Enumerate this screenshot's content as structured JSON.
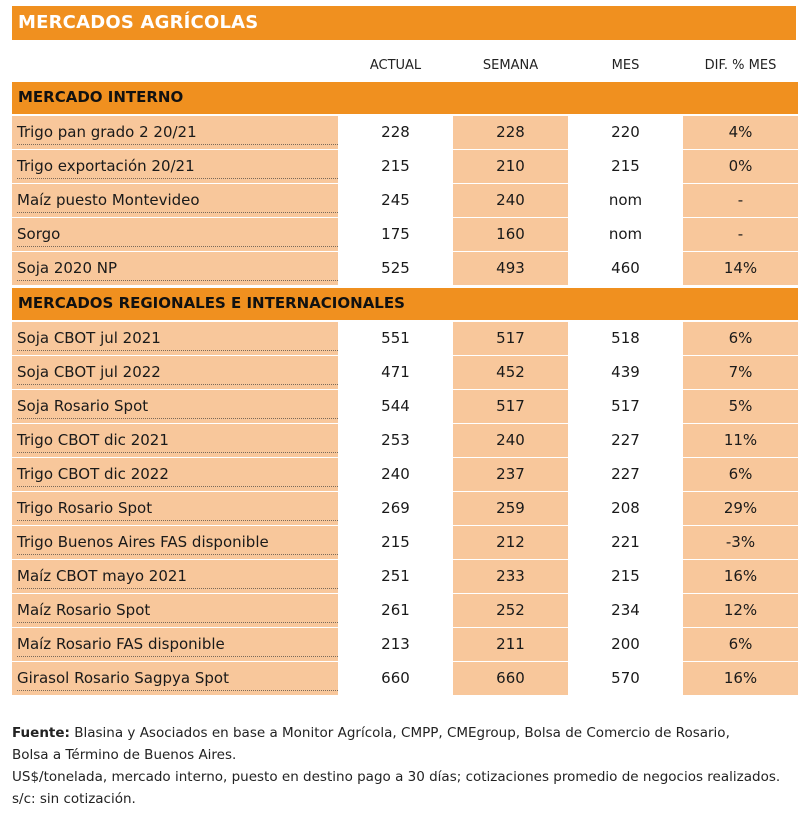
{
  "title": "MERCADOS AGRÍCOLAS",
  "columns": [
    "ACTUAL",
    "SEMANA",
    "MES",
    "DIF. % MES"
  ],
  "sections": [
    {
      "label": "MERCADO INTERNO",
      "rows": [
        {
          "name": "Trigo pan grado 2 20/21",
          "actual": "228",
          "semana": "228",
          "mes": "220",
          "dif": "4%"
        },
        {
          "name": "Trigo exportación 20/21",
          "actual": "215",
          "semana": "210",
          "mes": "215",
          "dif": "0%"
        },
        {
          "name": "Maíz puesto Montevideo",
          "actual": "245",
          "semana": "240",
          "mes": "nom",
          "dif": "-"
        },
        {
          "name": "Sorgo",
          "actual": "175",
          "semana": "160",
          "mes": "nom",
          "dif": "-"
        },
        {
          "name": "Soja 2020 NP",
          "actual": "525",
          "semana": "493",
          "mes": "460",
          "dif": "14%"
        }
      ]
    },
    {
      "label": "MERCADOS REGIONALES E INTERNACIONALES",
      "rows": [
        {
          "name": "Soja CBOT jul 2021",
          "actual": "551",
          "semana": "517",
          "mes": "518",
          "dif": "6%"
        },
        {
          "name": "Soja CBOT jul 2022",
          "actual": "471",
          "semana": "452",
          "mes": "439",
          "dif": "7%"
        },
        {
          "name": "Soja Rosario Spot",
          "actual": "544",
          "semana": "517",
          "mes": "517",
          "dif": "5%"
        },
        {
          "name": "Trigo CBOT dic 2021",
          "actual": "253",
          "semana": "240",
          "mes": "227",
          "dif": "11%"
        },
        {
          "name": "Trigo CBOT dic 2022",
          "actual": "240",
          "semana": "237",
          "mes": "227",
          "dif": "6%"
        },
        {
          "name": "Trigo Rosario Spot",
          "actual": "269",
          "semana": "259",
          "mes": "208",
          "dif": "29%"
        },
        {
          "name": "Trigo Buenos Aires FAS disponible",
          "actual": "215",
          "semana": "212",
          "mes": "221",
          "dif": "-3%"
        },
        {
          "name": "Maíz CBOT mayo 2021",
          "actual": "251",
          "semana": "233",
          "mes": "215",
          "dif": "16%"
        },
        {
          "name": "Maíz Rosario Spot",
          "actual": "261",
          "semana": "252",
          "mes": "234",
          "dif": "12%"
        },
        {
          "name": "Maíz Rosario FAS disponible",
          "actual": "213",
          "semana": "211",
          "mes": "200",
          "dif": "6%"
        },
        {
          "name": "Girasol Rosario Sagpya Spot",
          "actual": "660",
          "semana": "660",
          "mes": "570",
          "dif": "16%"
        }
      ]
    }
  ],
  "footer": {
    "source_label": "Fuente:",
    "source_text": " Blasina y Asociados en base a Monitor Agrícola, CMPP, CMEgroup, Bolsa de Comercio de Rosario,",
    "source_text_2": "Bolsa a Término de Buenos Aires.",
    "note_1": "US$/tonelada, mercado interno, puesto en destino pago a 30 días; cotizaciones promedio de negocios realizados.",
    "note_2": "s/c: sin cotización."
  },
  "colors": {
    "accent": "#f0901f",
    "row_fill": "#f8c79b",
    "white": "#ffffff"
  }
}
